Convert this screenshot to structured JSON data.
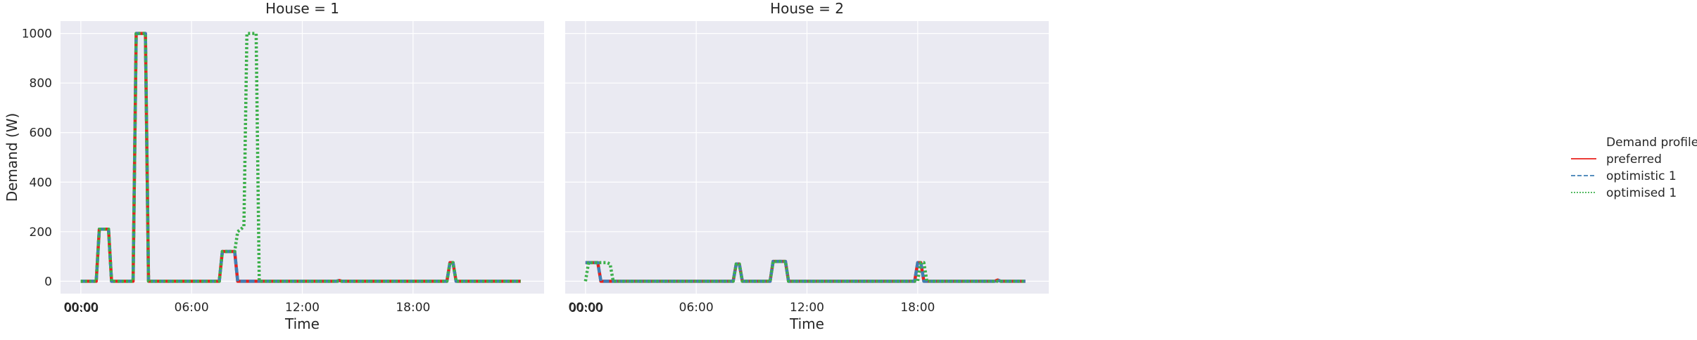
{
  "chart_data": {
    "type": "line",
    "ylabel": "Demand (W)",
    "xlabel": "Time",
    "ylim": [
      -50,
      1050
    ],
    "xlim_hours": [
      -1.1,
      25.1
    ],
    "yticks": [
      0,
      200,
      400,
      600,
      800,
      1000
    ],
    "xticks": [
      {
        "hour": 0,
        "label": "00:00"
      },
      {
        "hour": 6,
        "label": "06:00"
      },
      {
        "hour": 12,
        "label": "12:00"
      },
      {
        "hour": 18,
        "label": "18:00"
      }
    ],
    "extra_tick_label": "00:00",
    "grid": true,
    "legend": {
      "title": "Demand profile",
      "placement": "right",
      "entries": [
        {
          "label": "preferred",
          "color": "#e8211c",
          "dash": "solid"
        },
        {
          "label": "optimistic 1",
          "color": "#3f7fb5",
          "dash": "dashed"
        },
        {
          "label": "optimised 1",
          "color": "#3db04b",
          "dash": "dotted"
        }
      ]
    },
    "panels": [
      {
        "title": "House = 1",
        "series": [
          {
            "name": "preferred",
            "x": [
              "00:00",
              "00:50",
              "01:00",
              "01:10",
              "01:30",
              "01:40",
              "02:50",
              "03:00",
              "03:20",
              "03:30",
              "03:40",
              "07:30",
              "07:40",
              "07:50",
              "08:00",
              "08:10",
              "08:20",
              "08:30",
              "13:50",
              "14:00",
              "14:10",
              "19:50",
              "20:00",
              "20:10",
              "20:20",
              "23:50"
            ],
            "y": [
              0,
              0,
              210,
              210,
              210,
              0,
              0,
              1000,
              1000,
              1000,
              0,
              0,
              120,
              120,
              120,
              120,
              120,
              0,
              0,
              3,
              0,
              0,
              75,
              75,
              0,
              0
            ]
          },
          {
            "name": "optimistic 1",
            "x": [
              "00:00",
              "00:50",
              "01:00",
              "01:10",
              "01:30",
              "01:40",
              "02:50",
              "03:00",
              "03:20",
              "03:30",
              "03:40",
              "07:30",
              "07:40",
              "07:50",
              "08:00",
              "08:10",
              "08:20",
              "08:30",
              "13:50",
              "14:00",
              "14:10",
              "19:50",
              "20:00",
              "20:10",
              "20:20",
              "23:50"
            ],
            "y": [
              0,
              0,
              210,
              210,
              210,
              0,
              0,
              1000,
              1000,
              1000,
              0,
              0,
              120,
              120,
              120,
              120,
              120,
              0,
              0,
              3,
              0,
              0,
              75,
              75,
              0,
              0
            ]
          },
          {
            "name": "optimised 1",
            "x": [
              "00:00",
              "00:50",
              "01:00",
              "01:10",
              "01:30",
              "01:40",
              "02:50",
              "03:00",
              "03:20",
              "03:30",
              "03:40",
              "07:30",
              "07:40",
              "07:50",
              "08:00",
              "08:10",
              "08:20",
              "08:30",
              "08:40",
              "08:50",
              "09:00",
              "09:10",
              "09:20",
              "09:30",
              "09:40",
              "09:50",
              "19:50",
              "20:00",
              "20:10",
              "20:20",
              "23:50"
            ],
            "y": [
              0,
              0,
              210,
              210,
              210,
              0,
              0,
              1000,
              1000,
              1000,
              0,
              0,
              120,
              120,
              120,
              120,
              120,
              200,
              210,
              220,
              1000,
              1000,
              1000,
              1000,
              0,
              0,
              0,
              75,
              75,
              0,
              0
            ]
          }
        ]
      },
      {
        "title": "House = 2",
        "series": [
          {
            "name": "preferred",
            "x": [
              "00:00",
              "00:10",
              "00:30",
              "00:40",
              "00:50",
              "08:00",
              "08:10",
              "08:20",
              "08:30",
              "10:00",
              "10:10",
              "10:20",
              "10:30",
              "10:40",
              "10:50",
              "11:00",
              "17:50",
              "18:00",
              "18:10",
              "18:20",
              "18:30",
              "22:10",
              "22:20",
              "22:30",
              "23:50"
            ],
            "y": [
              75,
              75,
              75,
              75,
              0,
              0,
              70,
              70,
              0,
              0,
              80,
              80,
              80,
              80,
              80,
              0,
              0,
              75,
              75,
              0,
              0,
              0,
              5,
              0,
              0
            ]
          },
          {
            "name": "optimistic 1",
            "x": [
              "00:00",
              "00:10",
              "00:30",
              "00:40",
              "00:50",
              "08:00",
              "08:10",
              "08:20",
              "08:30",
              "10:00",
              "10:10",
              "10:20",
              "10:30",
              "10:40",
              "10:50",
              "11:00",
              "17:50",
              "18:00",
              "18:10",
              "18:20",
              "18:30",
              "22:10",
              "22:20",
              "22:30",
              "23:50"
            ],
            "y": [
              75,
              75,
              75,
              75,
              0,
              0,
              70,
              70,
              0,
              0,
              80,
              80,
              80,
              80,
              80,
              0,
              0,
              75,
              75,
              0,
              0,
              0,
              5,
              0,
              0
            ]
          },
          {
            "name": "optimised 1",
            "x": [
              "00:00",
              "00:10",
              "00:20",
              "00:30",
              "01:00",
              "01:10",
              "01:20",
              "01:30",
              "08:00",
              "08:10",
              "08:20",
              "08:30",
              "10:00",
              "10:10",
              "10:20",
              "10:30",
              "10:40",
              "10:50",
              "11:00",
              "18:00",
              "18:10",
              "18:20",
              "18:30",
              "23:50"
            ],
            "y": [
              0,
              75,
              75,
              75,
              75,
              75,
              70,
              0,
              0,
              70,
              70,
              0,
              0,
              80,
              80,
              80,
              80,
              80,
              0,
              0,
              75,
              75,
              0,
              0
            ]
          }
        ]
      }
    ]
  }
}
